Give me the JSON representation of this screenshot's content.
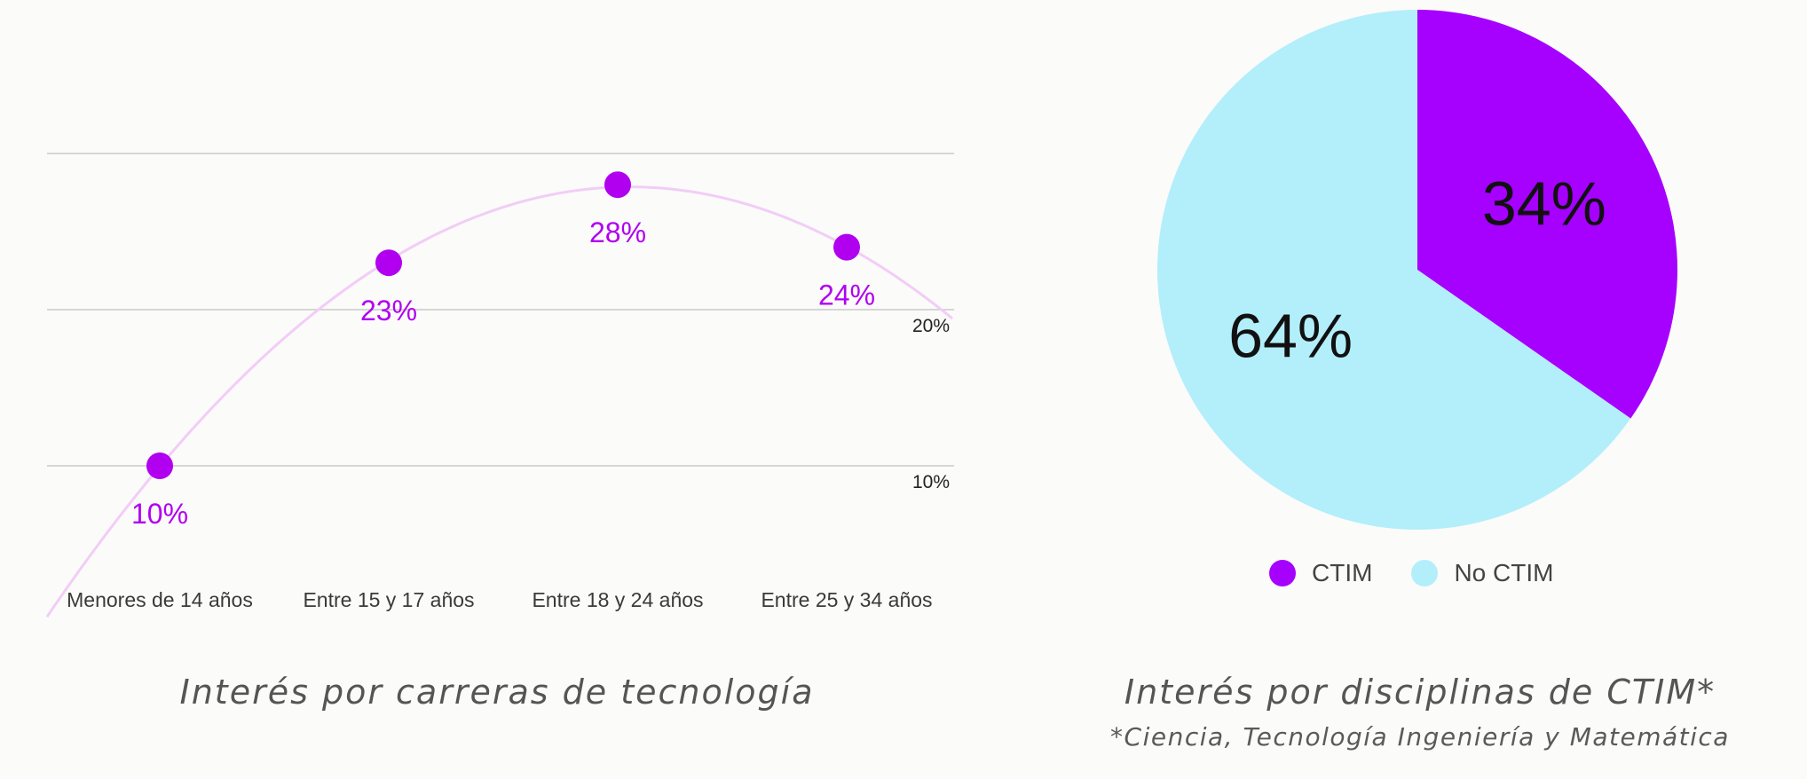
{
  "chart_data": [
    {
      "type": "line",
      "categories": [
        "Menores de 14 años",
        "Entre 15 y 17 años",
        "Entre 18 y 24 años",
        "Entre 25 y 34 años"
      ],
      "values": [
        10,
        23,
        28,
        24
      ],
      "data_labels": [
        "10%",
        "23%",
        "28%",
        "24%"
      ],
      "y_ticks": [
        10,
        20,
        30
      ],
      "y_tick_labels": [
        "10%",
        "20%",
        ""
      ],
      "ylim": [
        3,
        30
      ],
      "grid": true,
      "trendline": "polynomial",
      "colors": {
        "point": "#b100f0",
        "label": "#b100f0",
        "trend": "#f2cdf6",
        "grid": "#c9c9c9"
      }
    },
    {
      "type": "pie",
      "slices": [
        {
          "name": "CTIM",
          "value": 34,
          "label": "34%",
          "color": "#a600ff"
        },
        {
          "name": "No CTIM",
          "value": 64,
          "label": "64%",
          "color": "#b3eefb"
        }
      ],
      "legend": "bottom"
    }
  ],
  "captions": {
    "left": "Interés por carreras de tecnología",
    "right": "Interés por disciplinas de CTIM*",
    "right_note": "*Ciencia, Tecnología Ingeniería y Matemática"
  }
}
